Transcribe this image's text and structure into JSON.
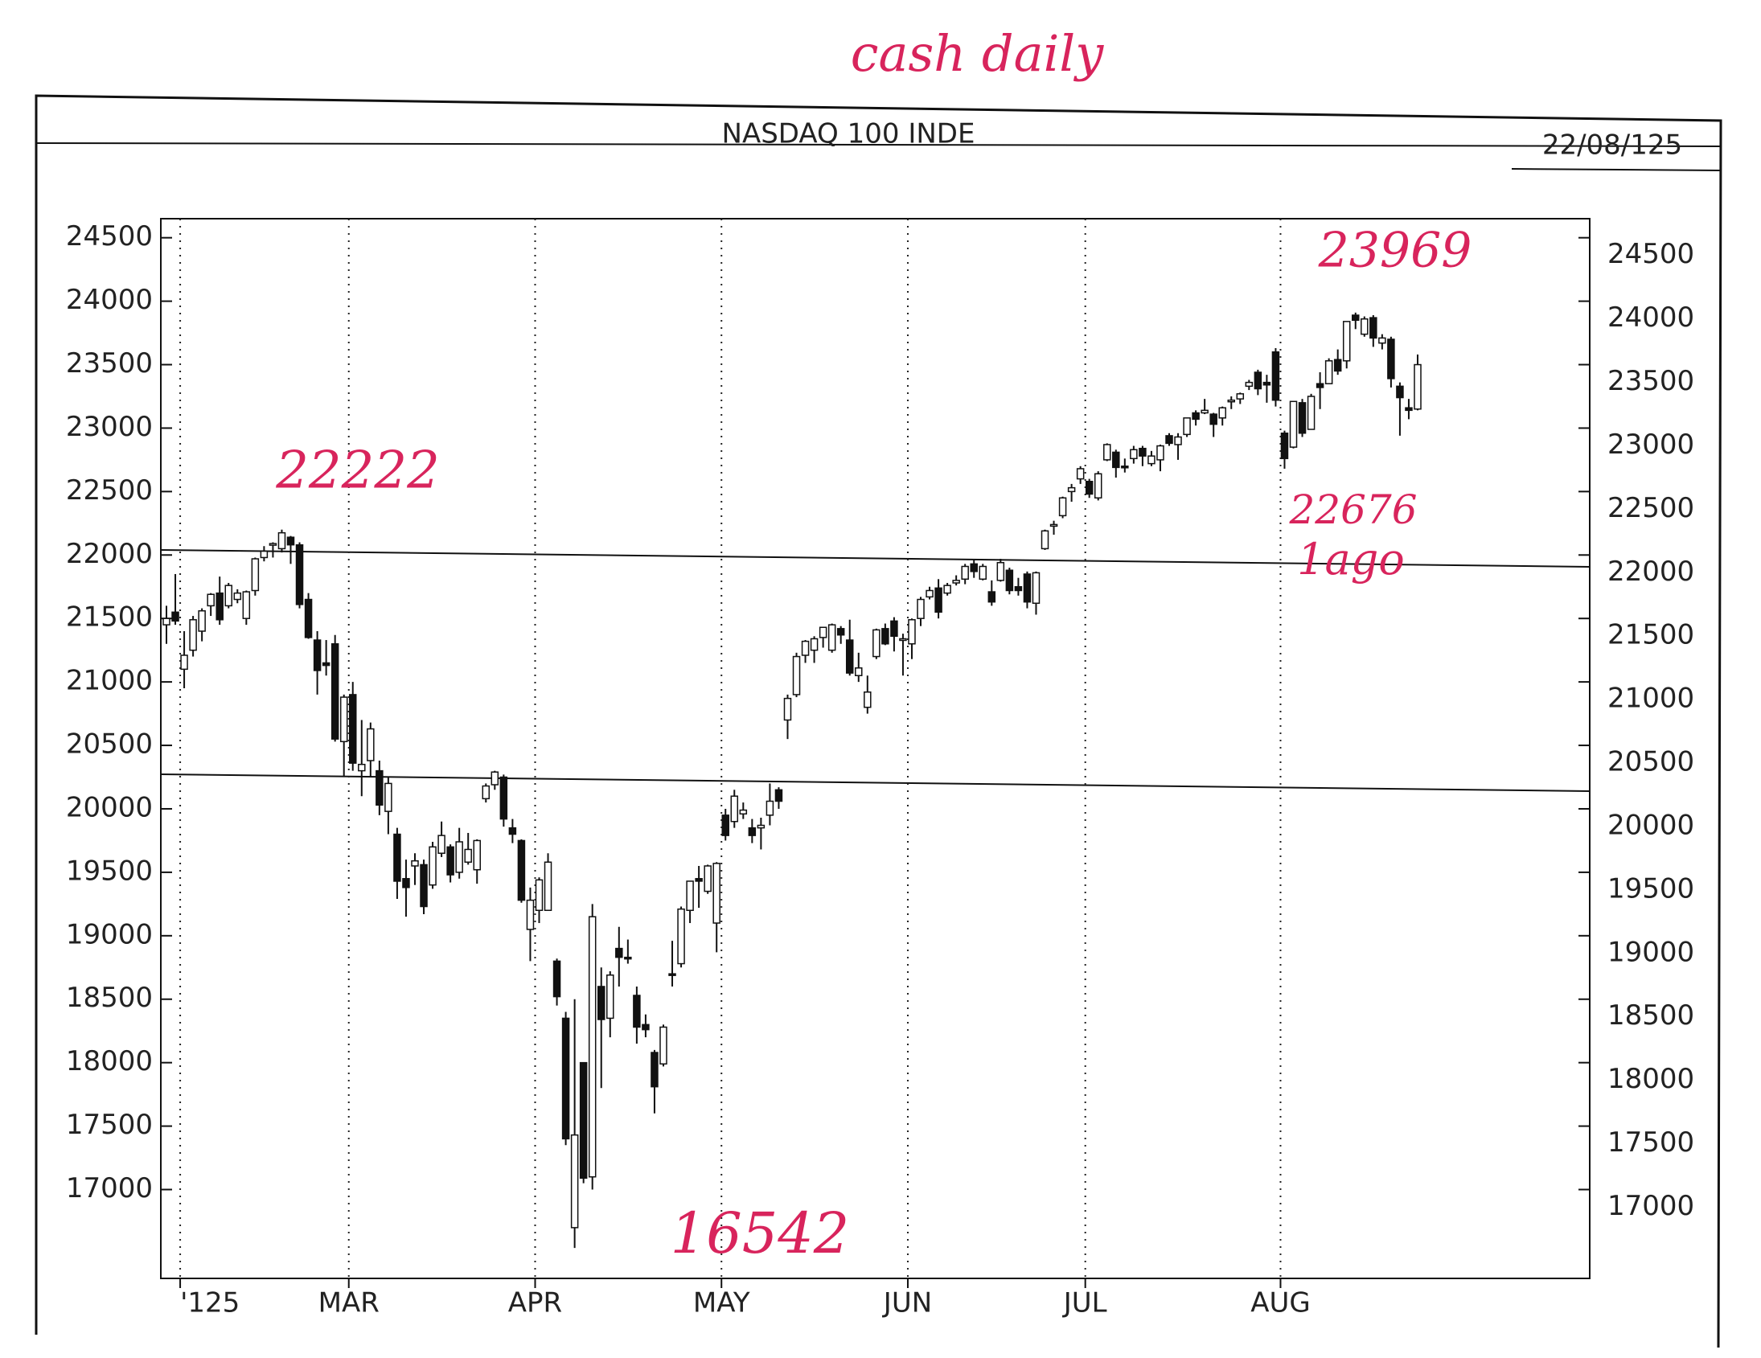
{
  "chart_data": {
    "type": "candlestick",
    "title": "NASDAQ 100 INDE",
    "date": "22/08/125",
    "annotations": [
      "cash daily",
      "22222",
      "23969",
      "22676",
      "1ago",
      "16542"
    ],
    "categories": [
      null,
      null,
      "'125",
      null,
      null,
      null,
      null,
      null,
      null,
      null,
      null,
      null,
      null,
      null,
      null,
      null,
      null,
      null,
      null,
      null,
      null,
      "MAR",
      null,
      null,
      null,
      null,
      null,
      null,
      null,
      null,
      null,
      null,
      null,
      null,
      null,
      null,
      null,
      null,
      null,
      null,
      null,
      null,
      "APR",
      null,
      null,
      null,
      null,
      null,
      null,
      null,
      null,
      null,
      null,
      null,
      null,
      null,
      null,
      null,
      null,
      null,
      null,
      null,
      null,
      "MAY",
      null,
      null,
      null,
      null,
      null,
      null,
      null,
      null,
      null,
      null,
      null,
      null,
      null,
      null,
      null,
      null,
      null,
      null,
      null,
      null,
      "JUN",
      null,
      null,
      null,
      null,
      null,
      null,
      null,
      null,
      null,
      null,
      null,
      null,
      null,
      null,
      null,
      null,
      null,
      null,
      null,
      "JUL",
      null,
      null,
      null,
      null,
      null,
      null,
      null,
      null,
      null,
      null,
      null,
      null,
      null,
      null,
      null,
      null,
      null,
      null,
      null,
      null,
      null,
      "AUG",
      null,
      null,
      null,
      null,
      null,
      null,
      null,
      null,
      null,
      null,
      null,
      null,
      null,
      null,
      null
    ],
    "open": [
      21450,
      21550,
      21100,
      21250,
      21400,
      21600,
      21700,
      21600,
      21650,
      21500,
      21720,
      21980,
      22080,
      22050,
      22140,
      22080,
      21650,
      21330,
      21150,
      21300,
      20530,
      20900,
      20300,
      20380,
      20300,
      19980,
      19800,
      19450,
      19550,
      19560,
      19400,
      19650,
      19700,
      19500,
      19580,
      19520,
      20080,
      20190,
      20250,
      19850,
      19750,
      19050,
      19200,
      19200,
      18800,
      18350,
      16700,
      18000,
      17100,
      18600,
      18350,
      18900,
      18830,
      18530,
      18300,
      18080,
      17990,
      18700,
      18780,
      19200,
      19450,
      19350,
      19100,
      19950,
      19900,
      19960,
      19850,
      19850,
      19950,
      20150,
      20700,
      20900,
      21210,
      21250,
      21350,
      21250,
      21420,
      21330,
      21050,
      20800,
      21200,
      21420,
      21480,
      21330,
      21300,
      21500,
      21670,
      21740,
      21700,
      21780,
      21810,
      21930,
      21810,
      21710,
      21800,
      21880,
      21750,
      21850,
      21620,
      22050,
      22230,
      22310,
      22500,
      22600,
      22580,
      22450,
      22750,
      22810,
      22700,
      22760,
      22840,
      22720,
      22750,
      22940,
      22870,
      22950,
      23120,
      23120,
      23110,
      23080,
      23210,
      23230,
      23330,
      23440,
      23360,
      23600,
      22960,
      22850,
      23200,
      22990,
      23350,
      23350,
      23540,
      23530,
      23890,
      23740,
      23870,
      23670,
      23700,
      23330,
      23160,
      23150
    ],
    "high": [
      21600,
      21850,
      21400,
      21520,
      21580,
      21700,
      21830,
      21780,
      21730,
      21720,
      21980,
      22070,
      22100,
      22200,
      22150,
      22100,
      21700,
      21400,
      21330,
      21370,
      20900,
      21000,
      20700,
      20680,
      20380,
      20250,
      19850,
      19600,
      19650,
      19600,
      19740,
      19900,
      19720,
      19850,
      19810,
      19760,
      20200,
      20300,
      20270,
      19920,
      19760,
      19380,
      19460,
      19650,
      18820,
      18400,
      18500,
      18000,
      19250,
      18750,
      18720,
      19070,
      18970,
      18600,
      18380,
      18100,
      18300,
      18960,
      19230,
      19430,
      19550,
      19560,
      19580,
      20000,
      20150,
      20050,
      19920,
      19930,
      20200,
      20170,
      20900,
      21230,
      21330,
      21360,
      21430,
      21460,
      21440,
      21490,
      21230,
      21050,
      21420,
      21460,
      21510,
      21380,
      21500,
      21670,
      21750,
      21810,
      21780,
      21840,
      21930,
      21960,
      21930,
      21800,
      21970,
      21900,
      21820,
      21870,
      21870,
      22200,
      22270,
      22460,
      22560,
      22700,
      22600,
      22660,
      22880,
      22830,
      22760,
      22860,
      22860,
      22820,
      22870,
      22960,
      22960,
      23080,
      23140,
      23230,
      23120,
      23170,
      23250,
      23280,
      23380,
      23460,
      23420,
      23630,
      22980,
      23210,
      23230,
      23270,
      23440,
      23550,
      23620,
      23840,
      23910,
      23880,
      23890,
      23740,
      23720,
      23360,
      23230,
      23580
    ],
    "low": [
      21300,
      21450,
      20950,
      21200,
      21320,
      21520,
      21450,
      21580,
      21620,
      21450,
      21680,
      21950,
      21980,
      22020,
      21930,
      21580,
      21340,
      20900,
      21050,
      20530,
      20250,
      20300,
      20100,
      20250,
      19950,
      19800,
      19290,
      19150,
      19400,
      19170,
      19370,
      19620,
      19420,
      19450,
      19560,
      19410,
      20050,
      20150,
      19860,
      19730,
      19260,
      18800,
      19100,
      19200,
      18450,
      17350,
      16540,
      17050,
      17000,
      17800,
      18200,
      18600,
      18780,
      18150,
      18200,
      17600,
      17970,
      18600,
      18750,
      19100,
      19220,
      19330,
      18870,
      19750,
      19850,
      19920,
      19730,
      19680,
      19870,
      20000,
      20550,
      20880,
      21150,
      21150,
      21270,
      21230,
      21300,
      21050,
      21000,
      20750,
      21180,
      21290,
      21240,
      21050,
      21180,
      21440,
      21650,
      21500,
      21680,
      21760,
      21770,
      21820,
      21800,
      21600,
      21790,
      21690,
      21680,
      21580,
      21530,
      22040,
      22160,
      22290,
      22420,
      22560,
      22450,
      22430,
      22740,
      22610,
      22650,
      22720,
      22700,
      22700,
      22660,
      22860,
      22750,
      22930,
      23020,
      23110,
      22930,
      23020,
      23150,
      23190,
      23300,
      23260,
      23200,
      23170,
      22680,
      22840,
      22930,
      22990,
      23150,
      23350,
      23420,
      23470,
      23780,
      23720,
      23640,
      23620,
      23320,
      22940,
      23070,
      23140
    ],
    "close": [
      21500,
      21480,
      21210,
      21490,
      21560,
      21690,
      21490,
      21760,
      21700,
      21710,
      21970,
      22030,
      22090,
      22175,
      22080,
      21610,
      21350,
      21090,
      21130,
      20550,
      20880,
      20360,
      20350,
      20630,
      20030,
      20200,
      19430,
      19380,
      19590,
      19230,
      19700,
      19790,
      19480,
      19740,
      19680,
      19750,
      20180,
      20290,
      19920,
      19800,
      19280,
      19280,
      19440,
      19580,
      18520,
      17400,
      17430,
      17090,
      19150,
      18340,
      18690,
      18830,
      18830,
      18280,
      18260,
      17810,
      18280,
      18700,
      19210,
      19430,
      19430,
      19550,
      19570,
      19790,
      20100,
      19990,
      19790,
      19870,
      20060,
      20060,
      20870,
      21200,
      21320,
      21340,
      21430,
      21450,
      21370,
      21070,
      21110,
      20920,
      21410,
      21300,
      21360,
      21340,
      21490,
      21650,
      21720,
      21550,
      21760,
      21800,
      21910,
      21870,
      21910,
      21630,
      21940,
      21720,
      21720,
      21630,
      21860,
      22190,
      22240,
      22450,
      22530,
      22680,
      22480,
      22640,
      22870,
      22690,
      22700,
      22830,
      22780,
      22780,
      22860,
      22880,
      22930,
      23080,
      23070,
      23140,
      23030,
      23160,
      23220,
      23270,
      23360,
      23310,
      23340,
      23220,
      22760,
      23210,
      22960,
      23250,
      23320,
      23530,
      23450,
      23840,
      23850,
      23860,
      23710,
      23710,
      23390,
      23240,
      23140,
      23500
    ],
    "ylim": [
      16300,
      24650
    ],
    "yticks": [
      17000,
      17500,
      18000,
      18500,
      19000,
      19500,
      20000,
      20500,
      21000,
      21500,
      22000,
      22500,
      23000,
      23500,
      24000,
      24500
    ],
    "grid": true
  }
}
